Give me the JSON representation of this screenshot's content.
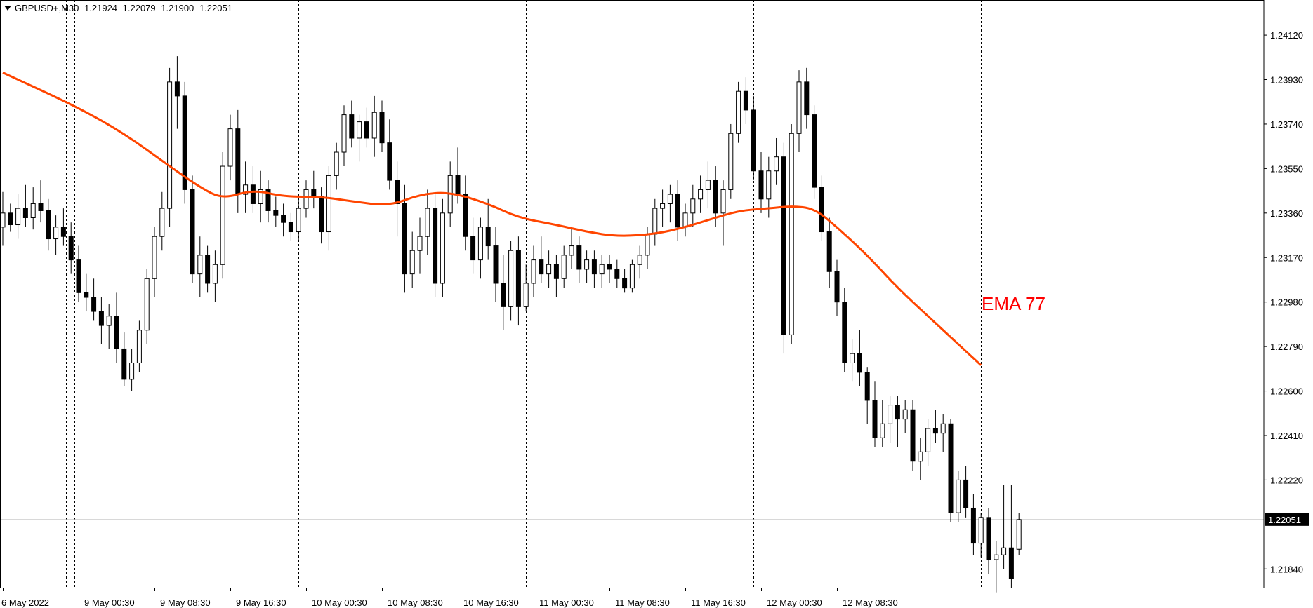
{
  "header": {
    "symbol": "GBPUSD+,M30",
    "open": "1.21924",
    "high": "1.22079",
    "low": "1.21900",
    "close": "1.22051"
  },
  "colors": {
    "background": "#ffffff",
    "bull_body": "#ffffff",
    "bear_body": "#000000",
    "ema": "#ff4500",
    "ema_label": "#ff0000",
    "price_tag_bg": "#000000",
    "bid_line": "#c0c0c0"
  },
  "chart_data": {
    "type": "candlestick",
    "symbol": "GBPUSD+",
    "timeframe": "M30",
    "ylim": [
      1.2176,
      1.2427
    ],
    "y_ticks": [
      "1.24120",
      "1.23930",
      "1.23740",
      "1.23550",
      "1.23360",
      "1.23170",
      "1.22980",
      "1.22790",
      "1.22600",
      "1.22410",
      "1.22220",
      "1.21840"
    ],
    "current_price": "1.22051",
    "x_labels": [
      "6 May 2022",
      "9 May 00:30",
      "9 May 08:30",
      "9 May 16:30",
      "10 May 00:30",
      "10 May 08:30",
      "10 May 16:30",
      "11 May 00:30",
      "11 May 08:30",
      "11 May 16:30",
      "12 May 00:30",
      "12 May 08:30"
    ],
    "ema_label": "EMA 77",
    "ohlc": [
      [
        1.233,
        1.2345,
        1.2322,
        1.2336
      ],
      [
        1.2336,
        1.234,
        1.2328,
        1.2331
      ],
      [
        1.2331,
        1.2344,
        1.2325,
        1.2338
      ],
      [
        1.2338,
        1.2348,
        1.233,
        1.2334
      ],
      [
        1.2334,
        1.2347,
        1.2329,
        1.234
      ],
      [
        1.234,
        1.235,
        1.2332,
        1.2337
      ],
      [
        1.2337,
        1.2342,
        1.232,
        1.2325
      ],
      [
        1.2325,
        1.2335,
        1.2318,
        1.233
      ],
      [
        1.233,
        1.2338,
        1.2322,
        1.2326
      ],
      [
        1.2326,
        1.2332,
        1.231,
        1.2316
      ],
      [
        1.2316,
        1.2322,
        1.2298,
        1.2302
      ],
      [
        1.2302,
        1.231,
        1.2294,
        1.23
      ],
      [
        1.23,
        1.2308,
        1.229,
        1.2294
      ],
      [
        1.2294,
        1.23,
        1.228,
        1.2288
      ],
      [
        1.2288,
        1.2297,
        1.2278,
        1.2292
      ],
      [
        1.2292,
        1.2302,
        1.2272,
        1.2278
      ],
      [
        1.2278,
        1.2285,
        1.2262,
        1.2265
      ],
      [
        1.2265,
        1.2278,
        1.226,
        1.2272
      ],
      [
        1.2272,
        1.229,
        1.2268,
        1.2286
      ],
      [
        1.2286,
        1.2312,
        1.228,
        1.2308
      ],
      [
        1.2308,
        1.233,
        1.23,
        1.2326
      ],
      [
        1.2326,
        1.2345,
        1.232,
        1.2338
      ],
      [
        1.2338,
        1.2398,
        1.233,
        1.2392
      ],
      [
        1.2392,
        1.2403,
        1.2372,
        1.2386
      ],
      [
        1.2386,
        1.2392,
        1.234,
        1.2346
      ],
      [
        1.2346,
        1.2352,
        1.2306,
        1.231
      ],
      [
        1.231,
        1.2326,
        1.23,
        1.2318
      ],
      [
        1.2318,
        1.2322,
        1.2302,
        1.2306
      ],
      [
        1.2306,
        1.232,
        1.2298,
        1.2314
      ],
      [
        1.2314,
        1.2362,
        1.2308,
        1.2356
      ],
      [
        1.2356,
        1.2378,
        1.235,
        1.2372
      ],
      [
        1.2372,
        1.238,
        1.2336,
        1.2344
      ],
      [
        1.2344,
        1.2358,
        1.2336,
        1.2348
      ],
      [
        1.2348,
        1.2356,
        1.2336,
        1.234
      ],
      [
        1.234,
        1.2354,
        1.2332,
        1.2346
      ],
      [
        1.2346,
        1.235,
        1.2332,
        1.2337
      ],
      [
        1.2337,
        1.2343,
        1.233,
        1.2335
      ],
      [
        1.2335,
        1.234,
        1.2326,
        1.2332
      ],
      [
        1.2332,
        1.2336,
        1.2324,
        1.2328
      ],
      [
        1.2328,
        1.2342,
        1.2324,
        1.2338
      ],
      [
        1.2338,
        1.235,
        1.2334,
        1.2346
      ],
      [
        1.2346,
        1.2354,
        1.2338,
        1.2343
      ],
      [
        1.2343,
        1.2347,
        1.2323,
        1.2328
      ],
      [
        1.2328,
        1.2356,
        1.232,
        1.2352
      ],
      [
        1.2352,
        1.2366,
        1.2346,
        1.2362
      ],
      [
        1.2362,
        1.2382,
        1.2356,
        1.2378
      ],
      [
        1.2378,
        1.2384,
        1.2364,
        1.2368
      ],
      [
        1.2368,
        1.2378,
        1.2358,
        1.2375
      ],
      [
        1.2375,
        1.2381,
        1.2364,
        1.2368
      ],
      [
        1.2368,
        1.2386,
        1.236,
        1.2379
      ],
      [
        1.2379,
        1.2384,
        1.2362,
        1.2366
      ],
      [
        1.2366,
        1.2376,
        1.2346,
        1.235
      ],
      [
        1.235,
        1.2358,
        1.2326,
        1.234
      ],
      [
        1.234,
        1.2348,
        1.2302,
        1.231
      ],
      [
        1.231,
        1.2328,
        1.2304,
        1.232
      ],
      [
        1.232,
        1.2334,
        1.231,
        1.2326
      ],
      [
        1.2326,
        1.2346,
        1.2318,
        1.2338
      ],
      [
        1.2338,
        1.2344,
        1.23,
        1.2306
      ],
      [
        1.2306,
        1.2342,
        1.23,
        1.2336
      ],
      [
        1.2336,
        1.2358,
        1.233,
        1.2352
      ],
      [
        1.2352,
        1.2364,
        1.234,
        1.2344
      ],
      [
        1.2344,
        1.2352,
        1.232,
        1.2326
      ],
      [
        1.2326,
        1.2334,
        1.231,
        1.2316
      ],
      [
        1.2316,
        1.2334,
        1.2308,
        1.233
      ],
      [
        1.233,
        1.2342,
        1.2316,
        1.2322
      ],
      [
        1.2322,
        1.233,
        1.2298,
        1.2306
      ],
      [
        1.2306,
        1.2318,
        1.2286,
        1.2296
      ],
      [
        1.2296,
        1.2324,
        1.229,
        1.232
      ],
      [
        1.232,
        1.2326,
        1.2288,
        1.2296
      ],
      [
        1.2296,
        1.2314,
        1.2294,
        1.2306
      ],
      [
        1.2306,
        1.2322,
        1.23,
        1.2316
      ],
      [
        1.2316,
        1.2326,
        1.2306,
        1.231
      ],
      [
        1.231,
        1.232,
        1.2304,
        1.2314
      ],
      [
        1.2314,
        1.2318,
        1.23,
        1.2308
      ],
      [
        1.2308,
        1.2322,
        1.2304,
        1.2318
      ],
      [
        1.2318,
        1.233,
        1.2312,
        1.2322
      ],
      [
        1.2322,
        1.2326,
        1.2306,
        1.2312
      ],
      [
        1.2312,
        1.232,
        1.2306,
        1.2316
      ],
      [
        1.2316,
        1.232,
        1.2304,
        1.231
      ],
      [
        1.231,
        1.2318,
        1.2304,
        1.2314
      ],
      [
        1.2314,
        1.2318,
        1.2306,
        1.2312
      ],
      [
        1.2312,
        1.2316,
        1.2304,
        1.2308
      ],
      [
        1.2308,
        1.2312,
        1.2302,
        1.2304
      ],
      [
        1.2304,
        1.2316,
        1.2302,
        1.2314
      ],
      [
        1.2314,
        1.2322,
        1.2308,
        1.2318
      ],
      [
        1.2318,
        1.233,
        1.2312,
        1.2327
      ],
      [
        1.2327,
        1.2342,
        1.2322,
        1.2338
      ],
      [
        1.2338,
        1.2346,
        1.233,
        1.234
      ],
      [
        1.234,
        1.2348,
        1.2332,
        1.2344
      ],
      [
        1.2344,
        1.235,
        1.2324,
        1.233
      ],
      [
        1.233,
        1.234,
        1.2326,
        1.2336
      ],
      [
        1.2336,
        1.2348,
        1.233,
        1.2342
      ],
      [
        1.2342,
        1.2352,
        1.2336,
        1.2346
      ],
      [
        1.2346,
        1.2358,
        1.2338,
        1.235
      ],
      [
        1.235,
        1.2356,
        1.233,
        1.2336
      ],
      [
        1.2336,
        1.235,
        1.2322,
        1.2346
      ],
      [
        1.2346,
        1.2374,
        1.2342,
        1.237
      ],
      [
        1.237,
        1.2392,
        1.2366,
        1.2388
      ],
      [
        1.2388,
        1.2394,
        1.2374,
        1.238
      ],
      [
        1.238,
        1.2386,
        1.235,
        1.2354
      ],
      [
        1.2354,
        1.2362,
        1.2336,
        1.2342
      ],
      [
        1.2342,
        1.236,
        1.2334,
        1.2354
      ],
      [
        1.2354,
        1.2368,
        1.2348,
        1.236
      ],
      [
        1.236,
        1.2366,
        1.2276,
        1.2284
      ],
      [
        1.2284,
        1.2374,
        1.228,
        1.237
      ],
      [
        1.237,
        1.2397,
        1.2362,
        1.2392
      ],
      [
        1.2392,
        1.2398,
        1.2372,
        1.2378
      ],
      [
        1.2378,
        1.2382,
        1.2342,
        1.2347
      ],
      [
        1.2347,
        1.2352,
        1.2324,
        1.2328
      ],
      [
        1.2328,
        1.2334,
        1.2304,
        1.2311
      ],
      [
        1.2311,
        1.2316,
        1.2292,
        1.2298
      ],
      [
        1.2298,
        1.2304,
        1.2268,
        1.2272
      ],
      [
        1.2272,
        1.2282,
        1.2264,
        1.2276
      ],
      [
        1.2276,
        1.2286,
        1.2262,
        1.2268
      ],
      [
        1.2268,
        1.227,
        1.2246,
        1.2256
      ],
      [
        1.2256,
        1.2264,
        1.2236,
        1.224
      ],
      [
        1.224,
        1.2256,
        1.2236,
        1.2246
      ],
      [
        1.2246,
        1.2258,
        1.2238,
        1.2254
      ],
      [
        1.2254,
        1.2258,
        1.2236,
        1.2248
      ],
      [
        1.2248,
        1.2256,
        1.2242,
        1.2252
      ],
      [
        1.2252,
        1.2256,
        1.2226,
        1.223
      ],
      [
        1.223,
        1.224,
        1.2222,
        1.2234
      ],
      [
        1.2234,
        1.2248,
        1.2228,
        1.2244
      ],
      [
        1.2244,
        1.2252,
        1.2238,
        1.2242
      ],
      [
        1.2242,
        1.225,
        1.2234,
        1.2246
      ],
      [
        1.2246,
        1.2248,
        1.2204,
        1.2208
      ],
      [
        1.2208,
        1.2226,
        1.2204,
        1.2222
      ],
      [
        1.2222,
        1.2228,
        1.2206,
        1.221
      ],
      [
        1.221,
        1.2216,
        1.219,
        1.2195
      ],
      [
        1.2195,
        1.2208,
        1.2189,
        1.2206
      ],
      [
        1.2206,
        1.221,
        1.2182,
        1.2188
      ],
      [
        1.2188,
        1.2196,
        1.2174,
        1.219
      ],
      [
        1.219,
        1.222,
        1.2184,
        1.2193
      ],
      [
        1.2193,
        1.222,
        1.2176,
        1.218
      ],
      [
        1.21924,
        1.22079,
        1.219,
        1.22051
      ]
    ],
    "ema": {
      "name": "EMA 77",
      "period": 77,
      "points": [
        [
          0,
          1.2396
        ],
        [
          10,
          1.2381
        ],
        [
          16,
          1.237
        ],
        [
          22,
          1.2356
        ],
        [
          26,
          1.2347
        ],
        [
          29,
          1.2342
        ],
        [
          33,
          1.2346
        ],
        [
          37,
          1.2343
        ],
        [
          42,
          1.2343
        ],
        [
          46,
          1.2341
        ],
        [
          51,
          1.2339
        ],
        [
          55,
          1.2344
        ],
        [
          59,
          1.2345
        ],
        [
          64,
          1.234
        ],
        [
          68,
          1.2334
        ],
        [
          73,
          1.2331
        ],
        [
          77,
          1.2328
        ],
        [
          81,
          1.2326
        ],
        [
          86,
          1.2327
        ],
        [
          90,
          1.233
        ],
        [
          93,
          1.2333
        ],
        [
          97,
          1.2337
        ],
        [
          101,
          1.2338
        ],
        [
          104,
          1.2339
        ],
        [
          107,
          1.2338
        ],
        [
          110,
          1.233
        ],
        [
          114,
          1.2318
        ],
        [
          118,
          1.2304
        ],
        [
          122,
          1.2292
        ],
        [
          126,
          1.228
        ],
        [
          129,
          1.2271
        ]
      ]
    }
  }
}
